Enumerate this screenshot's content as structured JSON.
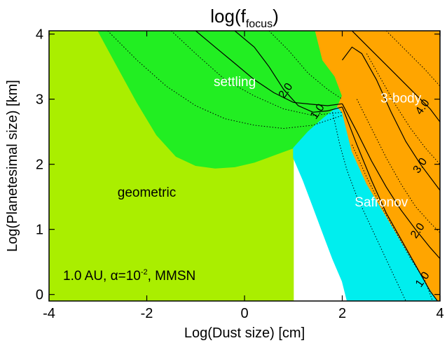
{
  "chart_data": {
    "type": "heatmap",
    "title_main": "log(f",
    "title_sub": "focus",
    "title_close": ")",
    "xlabel": "Log(Dust size) [cm]",
    "ylabel": "Log(Planetesimal size) [km]",
    "xlim": [
      -4,
      4
    ],
    "ylim": [
      -0.1,
      4.05
    ],
    "xticks": [
      -4,
      -2,
      0,
      2,
      4
    ],
    "yticks": [
      0,
      1,
      2,
      3,
      4
    ],
    "annotation_text": "1.0 AU, ",
    "annotation_alpha": "α=10",
    "annotation_exp": "-2",
    "annotation_tail": ", MMSN",
    "regions": [
      {
        "name": "geometric",
        "label": "geometric",
        "color": "#aaee00",
        "label_at": [
          -2.0,
          1.5
        ],
        "polygon": [
          [
            -4,
            -0.1
          ],
          [
            -4,
            4.05
          ],
          [
            1.0,
            4.05
          ],
          [
            1.0,
            -0.1
          ]
        ]
      },
      {
        "name": "settling",
        "label": "settling",
        "color": "#22ee22",
        "label_at": [
          -0.2,
          3.2
        ],
        "polygon": [
          [
            -3.0,
            4.05
          ],
          [
            -2.6,
            3.5
          ],
          [
            -2.2,
            2.95
          ],
          [
            -1.8,
            2.45
          ],
          [
            -1.4,
            2.12
          ],
          [
            -1.0,
            1.98
          ],
          [
            -0.6,
            1.94
          ],
          [
            -0.2,
            1.96
          ],
          [
            0.2,
            2.03
          ],
          [
            0.6,
            2.14
          ],
          [
            1.0,
            2.25
          ],
          [
            1.3,
            2.5
          ],
          [
            1.6,
            2.7
          ],
          [
            1.9,
            2.88
          ],
          [
            2.0,
            3.05
          ],
          [
            1.85,
            3.35
          ],
          [
            1.6,
            3.6
          ],
          [
            1.45,
            4.05
          ]
        ]
      },
      {
        "name": "safronov",
        "label": "Safronov",
        "color": "#00eeee",
        "label_at": [
          2.8,
          1.35
        ],
        "polygon": [
          [
            1.0,
            2.25
          ],
          [
            1.3,
            2.5
          ],
          [
            1.6,
            2.7
          ],
          [
            1.9,
            2.88
          ],
          [
            2.0,
            2.8
          ],
          [
            2.2,
            2.2
          ],
          [
            2.5,
            1.7
          ],
          [
            2.9,
            1.2
          ],
          [
            3.3,
            0.7
          ],
          [
            3.7,
            0.2
          ],
          [
            3.95,
            -0.1
          ],
          [
            2.1,
            -0.1
          ],
          [
            2.0,
            0.2
          ],
          [
            1.8,
            0.55
          ],
          [
            1.6,
            0.95
          ],
          [
            1.4,
            1.35
          ],
          [
            1.2,
            1.75
          ],
          [
            1.0,
            2.1
          ]
        ]
      },
      {
        "name": "3-body",
        "label": "3-body",
        "color": "#ffa500",
        "label_at": [
          3.2,
          2.95
        ],
        "polygon": [
          [
            1.45,
            4.05
          ],
          [
            1.6,
            3.6
          ],
          [
            1.85,
            3.35
          ],
          [
            2.0,
            3.05
          ],
          [
            1.9,
            2.88
          ],
          [
            2.0,
            2.8
          ],
          [
            2.2,
            2.2
          ],
          [
            2.5,
            1.7
          ],
          [
            2.9,
            1.2
          ],
          [
            3.3,
            0.7
          ],
          [
            3.7,
            0.2
          ],
          [
            3.95,
            -0.1
          ],
          [
            4.0,
            -0.1
          ],
          [
            4.0,
            4.05
          ]
        ]
      }
    ],
    "contours": [
      {
        "label": "2.0",
        "style": "solid",
        "label_at": [
          0.9,
          3.1
        ],
        "points": [
          [
            -1.0,
            4.05
          ],
          [
            -0.6,
            3.8
          ],
          [
            -0.2,
            3.55
          ],
          [
            0.2,
            3.3
          ],
          [
            0.6,
            3.1
          ],
          [
            1.0,
            2.95
          ],
          [
            1.4,
            2.92
          ],
          [
            1.7,
            2.9
          ],
          [
            2.0,
            2.93
          ]
        ]
      },
      {
        "label": "1.0",
        "style": "solid",
        "label_at": [
          1.55,
          2.78
        ],
        "points": [
          [
            -0.2,
            4.05
          ],
          [
            0.2,
            3.8
          ],
          [
            0.5,
            3.5
          ],
          [
            0.8,
            3.15
          ],
          [
            1.1,
            2.9
          ],
          [
            1.4,
            2.8
          ],
          [
            1.7,
            2.82
          ],
          [
            2.0,
            2.88
          ]
        ]
      },
      {
        "label": "",
        "style": "dotted",
        "label_at": null,
        "points": [
          [
            -2.8,
            4.05
          ],
          [
            -2.2,
            3.6
          ],
          [
            -1.6,
            3.2
          ],
          [
            -1.0,
            2.9
          ],
          [
            -0.4,
            2.7
          ],
          [
            0.2,
            2.6
          ],
          [
            0.8,
            2.55
          ],
          [
            1.4,
            2.6
          ],
          [
            2.0,
            2.75
          ]
        ]
      },
      {
        "label": "",
        "style": "dotted",
        "label_at": null,
        "points": [
          [
            -1.5,
            4.05
          ],
          [
            -1.0,
            3.7
          ],
          [
            -0.4,
            3.3
          ],
          [
            0.2,
            3.05
          ],
          [
            0.8,
            2.85
          ],
          [
            1.4,
            2.75
          ],
          [
            2.0,
            2.8
          ]
        ]
      },
      {
        "label": "",
        "style": "dotted",
        "label_at": null,
        "points": [
          [
            0.5,
            4.05
          ],
          [
            0.9,
            3.75
          ],
          [
            1.3,
            3.4
          ],
          [
            1.7,
            3.15
          ],
          [
            2.0,
            3.0
          ]
        ]
      },
      {
        "label": "",
        "style": "dotted",
        "label_at": null,
        "points": [
          [
            1.8,
            2.8
          ],
          [
            1.95,
            2.3
          ],
          [
            2.1,
            1.9
          ],
          [
            2.3,
            1.5
          ],
          [
            2.55,
            1.1
          ],
          [
            2.8,
            0.7
          ],
          [
            3.05,
            0.3
          ],
          [
            3.3,
            -0.1
          ]
        ]
      },
      {
        "label": "4.0",
        "style": "solid",
        "label_at": [
          3.7,
          2.85
        ],
        "points": [
          [
            2.2,
            4.05
          ],
          [
            2.6,
            3.75
          ],
          [
            3.0,
            3.45
          ],
          [
            3.4,
            3.15
          ],
          [
            3.8,
            2.85
          ],
          [
            4.0,
            2.65
          ]
        ]
      },
      {
        "label": "3.0",
        "style": "solid",
        "label_at": [
          3.65,
          1.95
        ],
        "points": [
          [
            2.0,
            3.6
          ],
          [
            2.2,
            3.8
          ],
          [
            2.4,
            3.7
          ],
          [
            2.7,
            3.3
          ],
          [
            3.0,
            2.8
          ],
          [
            3.3,
            2.35
          ],
          [
            3.6,
            2.0
          ],
          [
            3.9,
            1.7
          ],
          [
            4.0,
            1.6
          ]
        ]
      },
      {
        "label": "2.0",
        "style": "solid",
        "label_at": [
          3.6,
          0.95
        ],
        "points": [
          [
            2.0,
            2.93
          ],
          [
            2.3,
            2.5
          ],
          [
            2.6,
            2.05
          ],
          [
            2.9,
            1.65
          ],
          [
            3.2,
            1.3
          ],
          [
            3.5,
            1.0
          ],
          [
            3.8,
            0.72
          ],
          [
            4.0,
            0.55
          ]
        ]
      },
      {
        "label": "1.0",
        "style": "solid",
        "label_at": [
          3.7,
          0.2
        ],
        "points": [
          [
            2.0,
            2.88
          ],
          [
            2.3,
            2.3
          ],
          [
            2.6,
            1.75
          ],
          [
            2.9,
            1.25
          ],
          [
            3.2,
            0.85
          ],
          [
            3.5,
            0.45
          ],
          [
            3.8,
            0.05
          ],
          [
            3.95,
            -0.1
          ]
        ]
      },
      {
        "label": "",
        "style": "dotted",
        "label_at": null,
        "points": [
          [
            2.9,
            4.05
          ],
          [
            3.3,
            3.75
          ],
          [
            3.7,
            3.45
          ],
          [
            4.0,
            3.2
          ]
        ]
      },
      {
        "label": "",
        "style": "dotted",
        "label_at": null,
        "points": [
          [
            2.5,
            3.7
          ],
          [
            2.8,
            3.3
          ],
          [
            3.1,
            2.9
          ],
          [
            3.4,
            2.55
          ],
          [
            3.7,
            2.25
          ],
          [
            4.0,
            2.0
          ]
        ]
      },
      {
        "label": "",
        "style": "dotted",
        "label_at": null,
        "points": [
          [
            2.3,
            3.0
          ],
          [
            2.6,
            2.55
          ],
          [
            2.9,
            2.1
          ],
          [
            3.2,
            1.7
          ],
          [
            3.5,
            1.35
          ],
          [
            3.8,
            1.1
          ],
          [
            4.0,
            0.95
          ]
        ]
      },
      {
        "label": "",
        "style": "dotted",
        "label_at": null,
        "points": [
          [
            2.2,
            2.3
          ],
          [
            2.5,
            1.8
          ],
          [
            2.8,
            1.35
          ],
          [
            3.1,
            0.95
          ],
          [
            3.4,
            0.55
          ],
          [
            3.7,
            0.2
          ],
          [
            3.85,
            -0.1
          ]
        ]
      }
    ]
  }
}
